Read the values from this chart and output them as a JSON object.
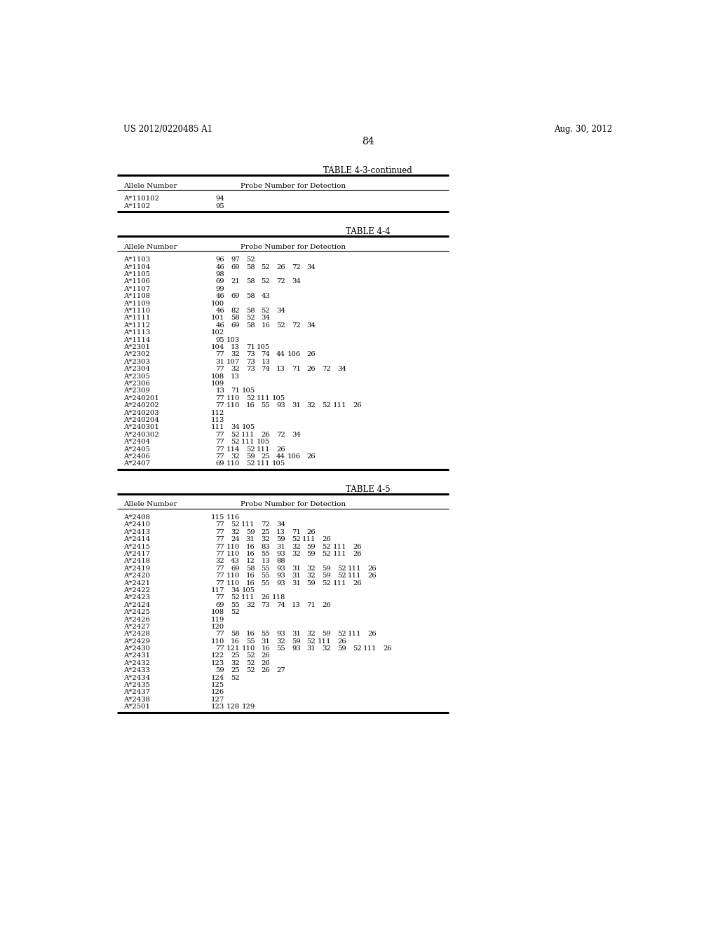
{
  "header_left": "US 2012/0220485 A1",
  "header_right": "Aug. 30, 2012",
  "page_number": "84",
  "background_color": "#ffffff",
  "table43_continued": {
    "title": "TABLE 4-3-continued",
    "col_headers": [
      "Allele Number",
      "Probe Number for Detection"
    ],
    "rows": [
      [
        "A*110102",
        [
          "94"
        ]
      ],
      [
        "A*1102",
        [
          "95"
        ]
      ]
    ]
  },
  "table44": {
    "title": "TABLE 4-4",
    "col_headers": [
      "Allele Number",
      "Probe Number for Detection"
    ],
    "rows": [
      [
        "A*1103",
        [
          "96",
          "97",
          "52"
        ]
      ],
      [
        "A*1104",
        [
          "46",
          "69",
          "58",
          "52",
          "26",
          "72",
          "34"
        ]
      ],
      [
        "A*1105",
        [
          "98"
        ]
      ],
      [
        "A*1106",
        [
          "69",
          "21",
          "58",
          "52",
          "72",
          "34"
        ]
      ],
      [
        "A*1107",
        [
          "99"
        ]
      ],
      [
        "A*1108",
        [
          "46",
          "69",
          "58",
          "43"
        ]
      ],
      [
        "A*1109",
        [
          "100"
        ]
      ],
      [
        "A*1110",
        [
          "46",
          "82",
          "58",
          "52",
          "34"
        ]
      ],
      [
        "A*1111",
        [
          "101",
          "58",
          "52",
          "34"
        ]
      ],
      [
        "A*1112",
        [
          "46",
          "69",
          "58",
          "16",
          "52",
          "72",
          "34"
        ]
      ],
      [
        "A*1113",
        [
          "102"
        ]
      ],
      [
        "A*1114",
        [
          "95",
          "103"
        ]
      ],
      [
        "A*2301",
        [
          "104",
          "13",
          "71",
          "105"
        ]
      ],
      [
        "A*2302",
        [
          "77",
          "32",
          "73",
          "74",
          "44",
          "106",
          "26"
        ]
      ],
      [
        "A*2303",
        [
          "31",
          "107",
          "73",
          "13"
        ]
      ],
      [
        "A*2304",
        [
          "77",
          "32",
          "73",
          "74",
          "13",
          "71",
          "26",
          "72",
          "34"
        ]
      ],
      [
        "A*2305",
        [
          "108",
          "13"
        ]
      ],
      [
        "A*2306",
        [
          "109"
        ]
      ],
      [
        "A*2309",
        [
          "13",
          "71",
          "105"
        ]
      ],
      [
        "A*240201",
        [
          "77",
          "110",
          "52",
          "111",
          "105"
        ]
      ],
      [
        "A*240202",
        [
          "77",
          "110",
          "16",
          "55",
          "93",
          "31",
          "32",
          "52",
          "111",
          "26"
        ]
      ],
      [
        "A*240203",
        [
          "112"
        ]
      ],
      [
        "A*240204",
        [
          "113"
        ]
      ],
      [
        "A*240301",
        [
          "111",
          "34",
          "105"
        ]
      ],
      [
        "A*240302",
        [
          "77",
          "52",
          "111",
          "26",
          "72",
          "34"
        ]
      ],
      [
        "A*2404",
        [
          "77",
          "52",
          "111",
          "105"
        ]
      ],
      [
        "A*2405",
        [
          "77",
          "114",
          "52",
          "111",
          "26"
        ]
      ],
      [
        "A*2406",
        [
          "77",
          "32",
          "59",
          "25",
          "44",
          "106",
          "26"
        ]
      ],
      [
        "A*2407",
        [
          "69",
          "110",
          "52",
          "111",
          "105"
        ]
      ]
    ]
  },
  "table45": {
    "title": "TABLE 4-5",
    "col_headers": [
      "Allele Number",
      "Probe Number for Detection"
    ],
    "rows": [
      [
        "A*2408",
        [
          "115",
          "116"
        ]
      ],
      [
        "A*2410",
        [
          "77",
          "52",
          "111",
          "72",
          "34"
        ]
      ],
      [
        "A*2413",
        [
          "77",
          "32",
          "59",
          "25",
          "13",
          "71",
          "26"
        ]
      ],
      [
        "A*2414",
        [
          "77",
          "24",
          "31",
          "32",
          "59",
          "52",
          "111",
          "26"
        ]
      ],
      [
        "A*2415",
        [
          "77",
          "110",
          "16",
          "83",
          "31",
          "32",
          "59",
          "52",
          "111",
          "26"
        ]
      ],
      [
        "A*2417",
        [
          "77",
          "110",
          "16",
          "55",
          "93",
          "32",
          "59",
          "52",
          "111",
          "26"
        ]
      ],
      [
        "A*2418",
        [
          "32",
          "43",
          "12",
          "13",
          "88"
        ]
      ],
      [
        "A*2419",
        [
          "77",
          "69",
          "58",
          "55",
          "93",
          "31",
          "32",
          "59",
          "52",
          "111",
          "26"
        ]
      ],
      [
        "A*2420",
        [
          "77",
          "110",
          "16",
          "55",
          "93",
          "31",
          "32",
          "59",
          "52",
          "111",
          "26"
        ]
      ],
      [
        "A*2421",
        [
          "77",
          "110",
          "16",
          "55",
          "93",
          "31",
          "59",
          "52",
          "111",
          "26"
        ]
      ],
      [
        "A*2422",
        [
          "117",
          "34",
          "105"
        ]
      ],
      [
        "A*2423",
        [
          "77",
          "52",
          "111",
          "26",
          "118"
        ]
      ],
      [
        "A*2424",
        [
          "69",
          "55",
          "32",
          "73",
          "74",
          "13",
          "71",
          "26"
        ]
      ],
      [
        "A*2425",
        [
          "108",
          "52"
        ]
      ],
      [
        "A*2426",
        [
          "119"
        ]
      ],
      [
        "A*2427",
        [
          "120"
        ]
      ],
      [
        "A*2428",
        [
          "77",
          "58",
          "16",
          "55",
          "93",
          "31",
          "32",
          "59",
          "52",
          "111",
          "26"
        ]
      ],
      [
        "A*2429",
        [
          "110",
          "16",
          "55",
          "31",
          "32",
          "59",
          "52",
          "111",
          "26"
        ]
      ],
      [
        "A*2430",
        [
          "77",
          "121",
          "110",
          "16",
          "55",
          "93",
          "31",
          "32",
          "59",
          "52",
          "111",
          "26"
        ]
      ],
      [
        "A*2431",
        [
          "122",
          "25",
          "52",
          "26"
        ]
      ],
      [
        "A*2432",
        [
          "123",
          "32",
          "52",
          "26"
        ]
      ],
      [
        "A*2433",
        [
          "59",
          "25",
          "52",
          "26",
          "27"
        ]
      ],
      [
        "A*2434",
        [
          "124",
          "52"
        ]
      ],
      [
        "A*2435",
        [
          "125"
        ]
      ],
      [
        "A*2437",
        [
          "126"
        ]
      ],
      [
        "A*2438",
        [
          "127"
        ]
      ],
      [
        "A*2501",
        [
          "123",
          "128",
          "129"
        ]
      ]
    ]
  }
}
